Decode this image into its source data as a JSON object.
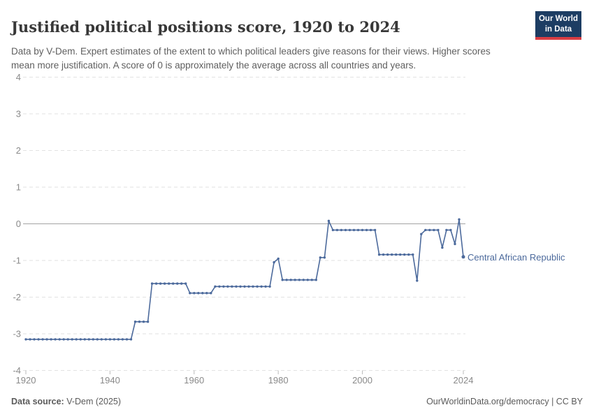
{
  "header": {
    "title": "Justified political positions score, 1920 to 2024",
    "subtitle": "Data by V-Dem. Expert estimates of the extent to which political leaders give reasons for their views. Higher scores mean more justification. A score of 0 is approximately the average across all countries and years.",
    "logo": {
      "line1": "Our World",
      "line2": "in Data"
    }
  },
  "footer": {
    "source_label": "Data source:",
    "source_value": " V-Dem (2025)",
    "right_text": "OurWorldinData.org/democracy | CC BY"
  },
  "colors": {
    "series_line": "#4c6a9c",
    "logo_navy": "#1d3d63",
    "logo_red": "#d93d43",
    "gridline": "#e2e2e2",
    "zero_line": "#a3a3a3",
    "axis_text": "#8a8a8a",
    "title_text": "#383838",
    "subtitle_text": "#5f5f5f",
    "footer_text": "#5b5b5b"
  },
  "chart_data": {
    "type": "line",
    "title": "Justified political positions score, 1920 to 2024",
    "xlabel": "",
    "ylabel": "",
    "ylim": [
      -4,
      4
    ],
    "xlim": [
      1920,
      2024
    ],
    "yticks": [
      4,
      3,
      2,
      1,
      0,
      -1,
      -2,
      -3,
      -4
    ],
    "xticks": [
      1920,
      1940,
      1960,
      1980,
      2000,
      2024
    ],
    "grid": "horizontal-dashed",
    "zero_line_solid": true,
    "legend_position": "end-of-line-label",
    "series": [
      {
        "name": "Central African Republic",
        "color": "#4c6a9c",
        "x": [
          1920,
          1921,
          1922,
          1923,
          1924,
          1925,
          1926,
          1927,
          1928,
          1929,
          1930,
          1931,
          1932,
          1933,
          1934,
          1935,
          1936,
          1937,
          1938,
          1939,
          1940,
          1941,
          1942,
          1943,
          1944,
          1945,
          1946,
          1947,
          1948,
          1949,
          1950,
          1951,
          1952,
          1953,
          1954,
          1955,
          1956,
          1957,
          1958,
          1959,
          1960,
          1961,
          1962,
          1963,
          1964,
          1965,
          1966,
          1967,
          1968,
          1969,
          1970,
          1971,
          1972,
          1973,
          1974,
          1975,
          1976,
          1977,
          1978,
          1979,
          1980,
          1981,
          1982,
          1983,
          1984,
          1985,
          1986,
          1987,
          1988,
          1989,
          1990,
          1991,
          1992,
          1993,
          1994,
          1995,
          1996,
          1997,
          1998,
          1999,
          2000,
          2001,
          2002,
          2003,
          2004,
          2005,
          2006,
          2007,
          2008,
          2009,
          2010,
          2011,
          2012,
          2013,
          2014,
          2015,
          2016,
          2017,
          2018,
          2019,
          2020,
          2021,
          2022,
          2023,
          2024
        ],
        "values": [
          -3.15,
          -3.15,
          -3.15,
          -3.15,
          -3.15,
          -3.15,
          -3.15,
          -3.15,
          -3.15,
          -3.15,
          -3.15,
          -3.15,
          -3.15,
          -3.15,
          -3.15,
          -3.15,
          -3.15,
          -3.15,
          -3.15,
          -3.15,
          -3.15,
          -3.15,
          -3.15,
          -3.15,
          -3.15,
          -3.15,
          -2.67,
          -2.67,
          -2.67,
          -2.67,
          -1.63,
          -1.63,
          -1.63,
          -1.63,
          -1.63,
          -1.63,
          -1.63,
          -1.63,
          -1.63,
          -1.89,
          -1.89,
          -1.89,
          -1.89,
          -1.89,
          -1.89,
          -1.71,
          -1.71,
          -1.71,
          -1.71,
          -1.71,
          -1.71,
          -1.71,
          -1.71,
          -1.71,
          -1.71,
          -1.71,
          -1.71,
          -1.71,
          -1.71,
          -1.05,
          -0.95,
          -1.53,
          -1.53,
          -1.53,
          -1.53,
          -1.53,
          -1.53,
          -1.53,
          -1.53,
          -1.53,
          -0.92,
          -0.92,
          0.08,
          -0.17,
          -0.17,
          -0.17,
          -0.17,
          -0.17,
          -0.17,
          -0.17,
          -0.17,
          -0.17,
          -0.17,
          -0.17,
          -0.84,
          -0.84,
          -0.84,
          -0.84,
          -0.84,
          -0.84,
          -0.84,
          -0.84,
          -0.84,
          -1.55,
          -0.28,
          -0.17,
          -0.17,
          -0.17,
          -0.17,
          -0.65,
          -0.17,
          -0.17,
          -0.55,
          0.12,
          -0.9
        ]
      }
    ]
  }
}
